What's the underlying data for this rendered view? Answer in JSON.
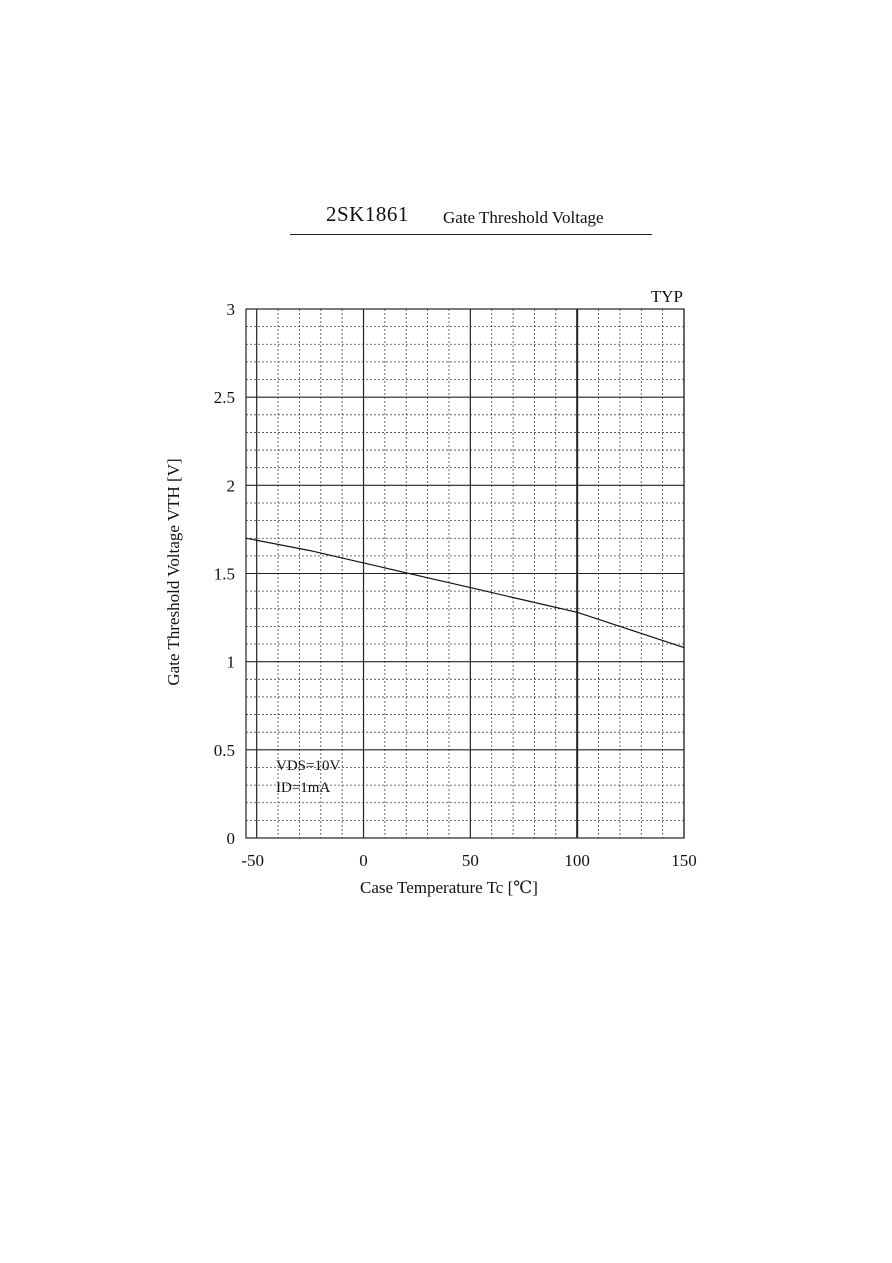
{
  "document": {
    "part_number": "2SK1861",
    "chart_name": "Gate Threshold Voltage"
  },
  "chart_data": {
    "type": "line",
    "title": "Gate Threshold Voltage",
    "badge": "TYP",
    "xlabel": "Case Temperature  Tc [℃]",
    "ylabel": "Gate Threshold Voltage  VTH  [V]",
    "xlim": [
      -55,
      150
    ],
    "ylim": [
      0,
      3
    ],
    "xticks": [
      -50,
      0,
      50,
      100,
      150
    ],
    "xtick_labels": [
      "-50",
      "0",
      "50",
      "100",
      "150"
    ],
    "yticks": [
      0,
      0.5,
      1,
      1.5,
      2,
      2.5,
      3
    ],
    "ytick_labels": [
      "0",
      "0.5",
      "1",
      "1.5",
      "2",
      "2.5",
      "3"
    ],
    "conditions": [
      "VDS=10V",
      "ID=1mA"
    ],
    "grid": true,
    "series": [
      {
        "x": [
          -55,
          -25,
          0,
          25,
          50,
          75,
          100,
          125,
          150
        ],
        "y": [
          1.7,
          1.63,
          1.56,
          1.49,
          1.42,
          1.35,
          1.28,
          1.18,
          1.08
        ]
      }
    ]
  }
}
